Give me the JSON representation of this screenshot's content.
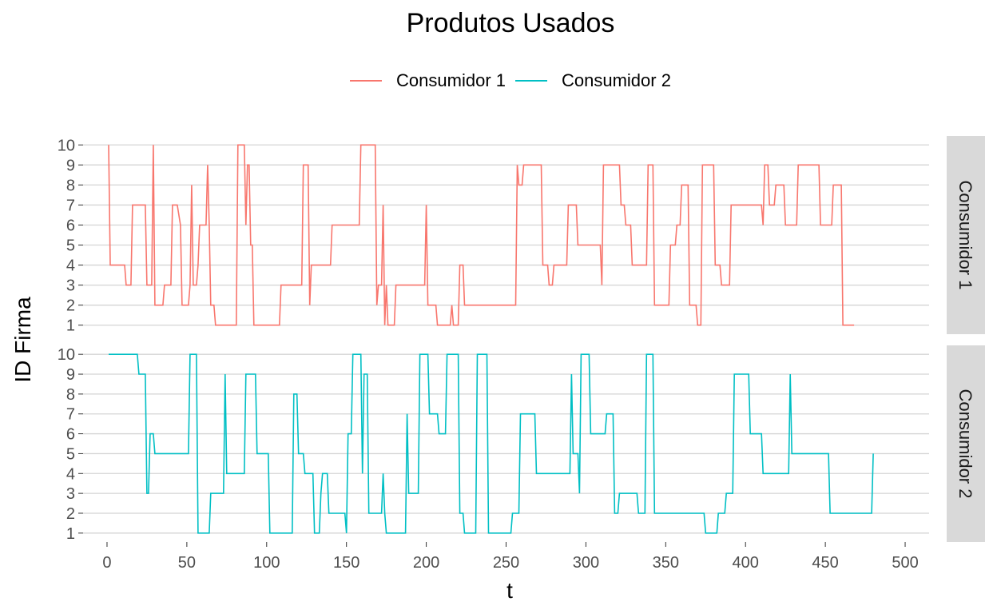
{
  "chart_data": {
    "type": "line",
    "title": "Produtos Usados",
    "xlabel": "t",
    "ylabel": "ID Firma",
    "xlim": [
      -15,
      515
    ],
    "ylim": [
      0.55,
      10.45
    ],
    "x_ticks": [
      0,
      50,
      100,
      150,
      200,
      250,
      300,
      350,
      400,
      450,
      500
    ],
    "y_ticks": [
      1,
      2,
      3,
      4,
      5,
      6,
      7,
      8,
      9,
      10
    ],
    "grid": "horizontal major lines",
    "legend_position": "top",
    "step": true,
    "legend": [
      {
        "label": "Consumidor 1",
        "color": "#F8766D"
      },
      {
        "label": "Consumidor 2",
        "color": "#00BFC4"
      }
    ],
    "facets": [
      {
        "strip_label": "Consumidor 1",
        "series_name": "Consumidor 1",
        "color": "#F8766D",
        "points": [
          [
            1,
            10
          ],
          [
            2,
            4
          ],
          [
            10,
            4
          ],
          [
            11,
            4
          ],
          [
            12,
            3
          ],
          [
            15,
            3
          ],
          [
            16,
            7
          ],
          [
            24,
            7
          ],
          [
            25,
            3
          ],
          [
            28,
            3
          ],
          [
            29,
            10
          ],
          [
            30,
            2
          ],
          [
            35,
            2
          ],
          [
            36,
            3
          ],
          [
            40,
            3
          ],
          [
            41,
            7
          ],
          [
            44,
            7
          ],
          [
            46,
            6
          ],
          [
            47,
            2
          ],
          [
            51,
            2
          ],
          [
            52,
            3
          ],
          [
            53,
            8
          ],
          [
            54,
            3
          ],
          [
            56,
            3
          ],
          [
            57,
            4
          ],
          [
            58,
            6
          ],
          [
            62,
            6
          ],
          [
            63,
            9
          ],
          [
            64,
            6
          ],
          [
            65,
            2
          ],
          [
            67,
            2
          ],
          [
            68,
            1
          ],
          [
            81,
            1
          ],
          [
            82,
            10
          ],
          [
            86,
            10
          ],
          [
            87,
            6
          ],
          [
            88,
            9
          ],
          [
            89,
            9
          ],
          [
            90,
            5
          ],
          [
            91,
            5
          ],
          [
            92,
            1
          ],
          [
            108,
            1
          ],
          [
            109,
            3
          ],
          [
            122,
            3
          ],
          [
            123,
            9
          ],
          [
            126,
            9
          ],
          [
            127,
            2
          ],
          [
            128,
            4
          ],
          [
            140,
            4
          ],
          [
            141,
            6
          ],
          [
            158,
            6
          ],
          [
            159,
            10
          ],
          [
            168,
            10
          ],
          [
            169,
            2
          ],
          [
            170,
            3
          ],
          [
            172,
            3
          ],
          [
            173,
            7
          ],
          [
            174,
            1
          ],
          [
            175,
            3
          ],
          [
            176,
            1
          ],
          [
            180,
            1
          ],
          [
            181,
            3
          ],
          [
            199,
            3
          ],
          [
            200,
            7
          ],
          [
            201,
            2
          ],
          [
            206,
            2
          ],
          [
            207,
            1
          ],
          [
            215,
            1
          ],
          [
            216,
            2
          ],
          [
            217,
            1
          ],
          [
            220,
            1
          ],
          [
            221,
            4
          ],
          [
            223,
            4
          ],
          [
            224,
            2
          ],
          [
            256,
            2
          ],
          [
            257,
            9
          ],
          [
            258,
            8
          ],
          [
            260,
            8
          ],
          [
            261,
            9
          ],
          [
            272,
            9
          ],
          [
            273,
            4
          ],
          [
            276,
            4
          ],
          [
            277,
            3
          ],
          [
            279,
            3
          ],
          [
            280,
            4
          ],
          [
            288,
            4
          ],
          [
            289,
            7
          ],
          [
            294,
            7
          ],
          [
            295,
            5
          ],
          [
            309,
            5
          ],
          [
            310,
            3
          ],
          [
            311,
            9
          ],
          [
            321,
            9
          ],
          [
            322,
            7
          ],
          [
            324,
            7
          ],
          [
            325,
            6
          ],
          [
            328,
            6
          ],
          [
            329,
            4
          ],
          [
            338,
            4
          ],
          [
            339,
            9
          ],
          [
            342,
            9
          ],
          [
            343,
            2
          ],
          [
            352,
            2
          ],
          [
            353,
            5
          ],
          [
            356,
            5
          ],
          [
            357,
            6
          ],
          [
            359,
            6
          ],
          [
            360,
            8
          ],
          [
            364,
            8
          ],
          [
            365,
            2
          ],
          [
            369,
            2
          ],
          [
            370,
            1
          ],
          [
            372,
            1
          ],
          [
            373,
            9
          ],
          [
            380,
            9
          ],
          [
            381,
            4
          ],
          [
            384,
            4
          ],
          [
            385,
            3
          ],
          [
            390,
            3
          ],
          [
            391,
            7
          ],
          [
            410,
            7
          ],
          [
            411,
            6
          ],
          [
            412,
            9
          ],
          [
            414,
            9
          ],
          [
            415,
            7
          ],
          [
            418,
            7
          ],
          [
            419,
            8
          ],
          [
            424,
            8
          ],
          [
            425,
            6
          ],
          [
            432,
            6
          ],
          [
            433,
            9
          ],
          [
            446,
            9
          ],
          [
            447,
            6
          ],
          [
            454,
            6
          ],
          [
            455,
            8
          ],
          [
            460,
            8
          ],
          [
            461,
            1
          ],
          [
            468,
            1
          ]
        ]
      },
      {
        "strip_label": "Consumidor 2",
        "series_name": "Consumidor 2",
        "color": "#00BFC4",
        "points": [
          [
            1,
            10
          ],
          [
            19,
            10
          ],
          [
            20,
            9
          ],
          [
            24,
            9
          ],
          [
            25,
            3
          ],
          [
            26,
            3
          ],
          [
            27,
            6
          ],
          [
            29,
            6
          ],
          [
            30,
            5
          ],
          [
            51,
            5
          ],
          [
            52,
            10
          ],
          [
            56,
            10
          ],
          [
            57,
            1
          ],
          [
            64,
            1
          ],
          [
            65,
            3
          ],
          [
            73,
            3
          ],
          [
            74,
            9
          ],
          [
            75,
            4
          ],
          [
            86,
            4
          ],
          [
            87,
            9
          ],
          [
            93,
            9
          ],
          [
            94,
            5
          ],
          [
            101,
            5
          ],
          [
            102,
            1
          ],
          [
            116,
            1
          ],
          [
            117,
            8
          ],
          [
            119,
            8
          ],
          [
            120,
            5
          ],
          [
            123,
            5
          ],
          [
            124,
            4
          ],
          [
            129,
            4
          ],
          [
            130,
            1
          ],
          [
            133,
            1
          ],
          [
            134,
            3
          ],
          [
            135,
            4
          ],
          [
            138,
            4
          ],
          [
            139,
            2
          ],
          [
            149,
            2
          ],
          [
            150,
            1
          ],
          [
            151,
            6
          ],
          [
            153,
            6
          ],
          [
            154,
            10
          ],
          [
            159,
            10
          ],
          [
            160,
            4
          ],
          [
            161,
            9
          ],
          [
            163,
            9
          ],
          [
            164,
            2
          ],
          [
            172,
            2
          ],
          [
            173,
            4
          ],
          [
            174,
            2
          ],
          [
            175,
            1
          ],
          [
            187,
            1
          ],
          [
            188,
            7
          ],
          [
            189,
            3
          ],
          [
            195,
            3
          ],
          [
            196,
            10
          ],
          [
            201,
            10
          ],
          [
            202,
            7
          ],
          [
            207,
            7
          ],
          [
            208,
            6
          ],
          [
            212,
            6
          ],
          [
            213,
            10
          ],
          [
            220,
            10
          ],
          [
            221,
            2
          ],
          [
            223,
            2
          ],
          [
            224,
            1
          ],
          [
            231,
            1
          ],
          [
            232,
            10
          ],
          [
            238,
            10
          ],
          [
            239,
            1
          ],
          [
            253,
            1
          ],
          [
            254,
            2
          ],
          [
            258,
            2
          ],
          [
            259,
            7
          ],
          [
            268,
            7
          ],
          [
            269,
            4
          ],
          [
            290,
            4
          ],
          [
            291,
            9
          ],
          [
            292,
            5
          ],
          [
            295,
            5
          ],
          [
            296,
            3
          ],
          [
            297,
            10
          ],
          [
            302,
            10
          ],
          [
            303,
            6
          ],
          [
            312,
            6
          ],
          [
            313,
            7
          ],
          [
            317,
            7
          ],
          [
            318,
            2
          ],
          [
            320,
            2
          ],
          [
            321,
            3
          ],
          [
            332,
            3
          ],
          [
            333,
            2
          ],
          [
            337,
            2
          ],
          [
            338,
            10
          ],
          [
            342,
            10
          ],
          [
            343,
            2
          ],
          [
            374,
            2
          ],
          [
            375,
            1
          ],
          [
            382,
            1
          ],
          [
            383,
            2
          ],
          [
            387,
            2
          ],
          [
            388,
            3
          ],
          [
            392,
            3
          ],
          [
            393,
            9
          ],
          [
            402,
            9
          ],
          [
            403,
            6
          ],
          [
            410,
            6
          ],
          [
            411,
            4
          ],
          [
            427,
            4
          ],
          [
            428,
            9
          ],
          [
            429,
            5
          ],
          [
            452,
            5
          ],
          [
            453,
            2
          ],
          [
            479,
            2
          ],
          [
            480,
            5
          ]
        ]
      }
    ]
  }
}
